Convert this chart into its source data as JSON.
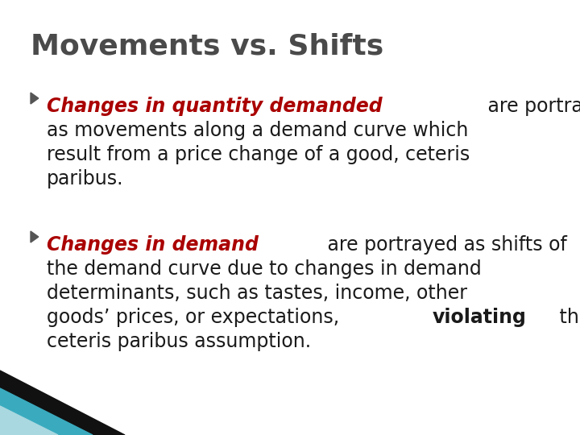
{
  "title": "Movements vs. Shifts",
  "title_color": "#4a4a4a",
  "title_fontsize": 26,
  "bg_color": "#ffffff",
  "bullet1_red": "Changes in quantity demanded",
  "bullet1_rest": " are portrayed\nas movements along a demand curve which\nresult from a price change of a good, ceteris\nparibus.",
  "bullet2_red": "Changes in demand",
  "bullet2_rest_pre": " are portrayed as shifts of\nthe demand curve due to changes in demand\ndeterminants, such as tastes, income, other\ngoods’ prices, or expectations, ",
  "bullet2_bold": "violating",
  "bullet2_rest_post": " the\nceteris paribus assumption.",
  "red_color": "#aa0000",
  "black_color": "#1a1a1a",
  "bullet_color": "#555555",
  "text_fontsize": 17,
  "teal_color": "#3aabbf",
  "light_teal_color": "#aad8e0",
  "dark_color": "#111111"
}
